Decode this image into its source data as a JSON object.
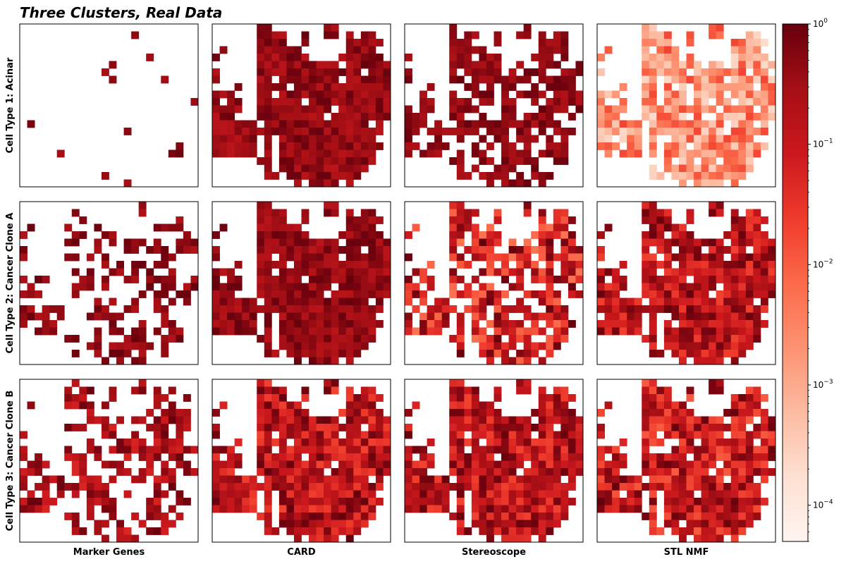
{
  "title": "Three Clusters, Real Data",
  "chart_data": {
    "type": "heatmap",
    "title": "Three Clusters, Real Data",
    "rows": [
      "Cell Type 1: Acinar",
      "Cell Type 2: Cancer Clone A",
      "Cell Type 3: Cancer Clone B"
    ],
    "columns": [
      "Marker Genes",
      "CARD",
      "Stereoscope",
      "STL NMF"
    ],
    "grid": {
      "cols": 24,
      "rows": 22
    },
    "colorbar": {
      "scale": "log",
      "colormap": "Reds",
      "range": [
        5e-05,
        1
      ],
      "ticks": [
        {
          "value": 1,
          "base": "10",
          "exp": "0"
        },
        {
          "value": 0.1,
          "base": "10",
          "exp": "−1"
        },
        {
          "value": 0.01,
          "base": "10",
          "exp": "−2"
        },
        {
          "value": 0.001,
          "base": "10",
          "exp": "−3"
        },
        {
          "value": 0.0001,
          "base": "10",
          "exp": "−4"
        }
      ]
    },
    "tissue_mask": [
      "......##.......##.......",
      "......####..#..##.#.##..",
      "......####..#.....#####.",
      ".#....######......####..",
      "#.....#######....######.",
      "......###########.######",
      "#.....##############.###",
      "#.....##.########.######",
      "...#..####.#############",
      "###...##.###############",
      "#.##..######.###########",
      "####..##########.#######",
      "###...#########.########",
      "######.##############.#.",
      "#######################.",
      "######.#.#############..",
      "######.#.##############.",
      "######.#.#############..",
      "......##.#############..",
      ".......#.############...",
      ".......##.##########....",
      "...........#.####.#....."
    ],
    "panels": [
      [
        {
          "column": "Marker Genes",
          "min": 0.2,
          "max": 1,
          "density": 0.04
        },
        {
          "column": "CARD",
          "min": 0.15,
          "max": 1,
          "density": 1
        },
        {
          "column": "Stereoscope",
          "min": 0.2,
          "max": 1,
          "density": 0.72
        },
        {
          "column": "STL NMF",
          "min": 0.0002,
          "max": 0.02,
          "density": 0.9
        }
      ],
      [
        {
          "column": "Marker Genes",
          "min": 0.2,
          "max": 1,
          "density": 0.46
        },
        {
          "column": "CARD",
          "min": 0.15,
          "max": 1,
          "density": 1
        },
        {
          "column": "Stereoscope",
          "min": 0.005,
          "max": 1,
          "density": 0.78
        },
        {
          "column": "STL NMF",
          "min": 0.02,
          "max": 1,
          "density": 0.98
        }
      ],
      [
        {
          "column": "Marker Genes",
          "min": 0.05,
          "max": 1,
          "density": 0.6
        },
        {
          "column": "CARD",
          "min": 0.02,
          "max": 1,
          "density": 1
        },
        {
          "column": "Stereoscope",
          "min": 0.02,
          "max": 1,
          "density": 1
        },
        {
          "column": "STL NMF",
          "min": 0.01,
          "max": 1,
          "density": 0.97
        }
      ]
    ]
  }
}
